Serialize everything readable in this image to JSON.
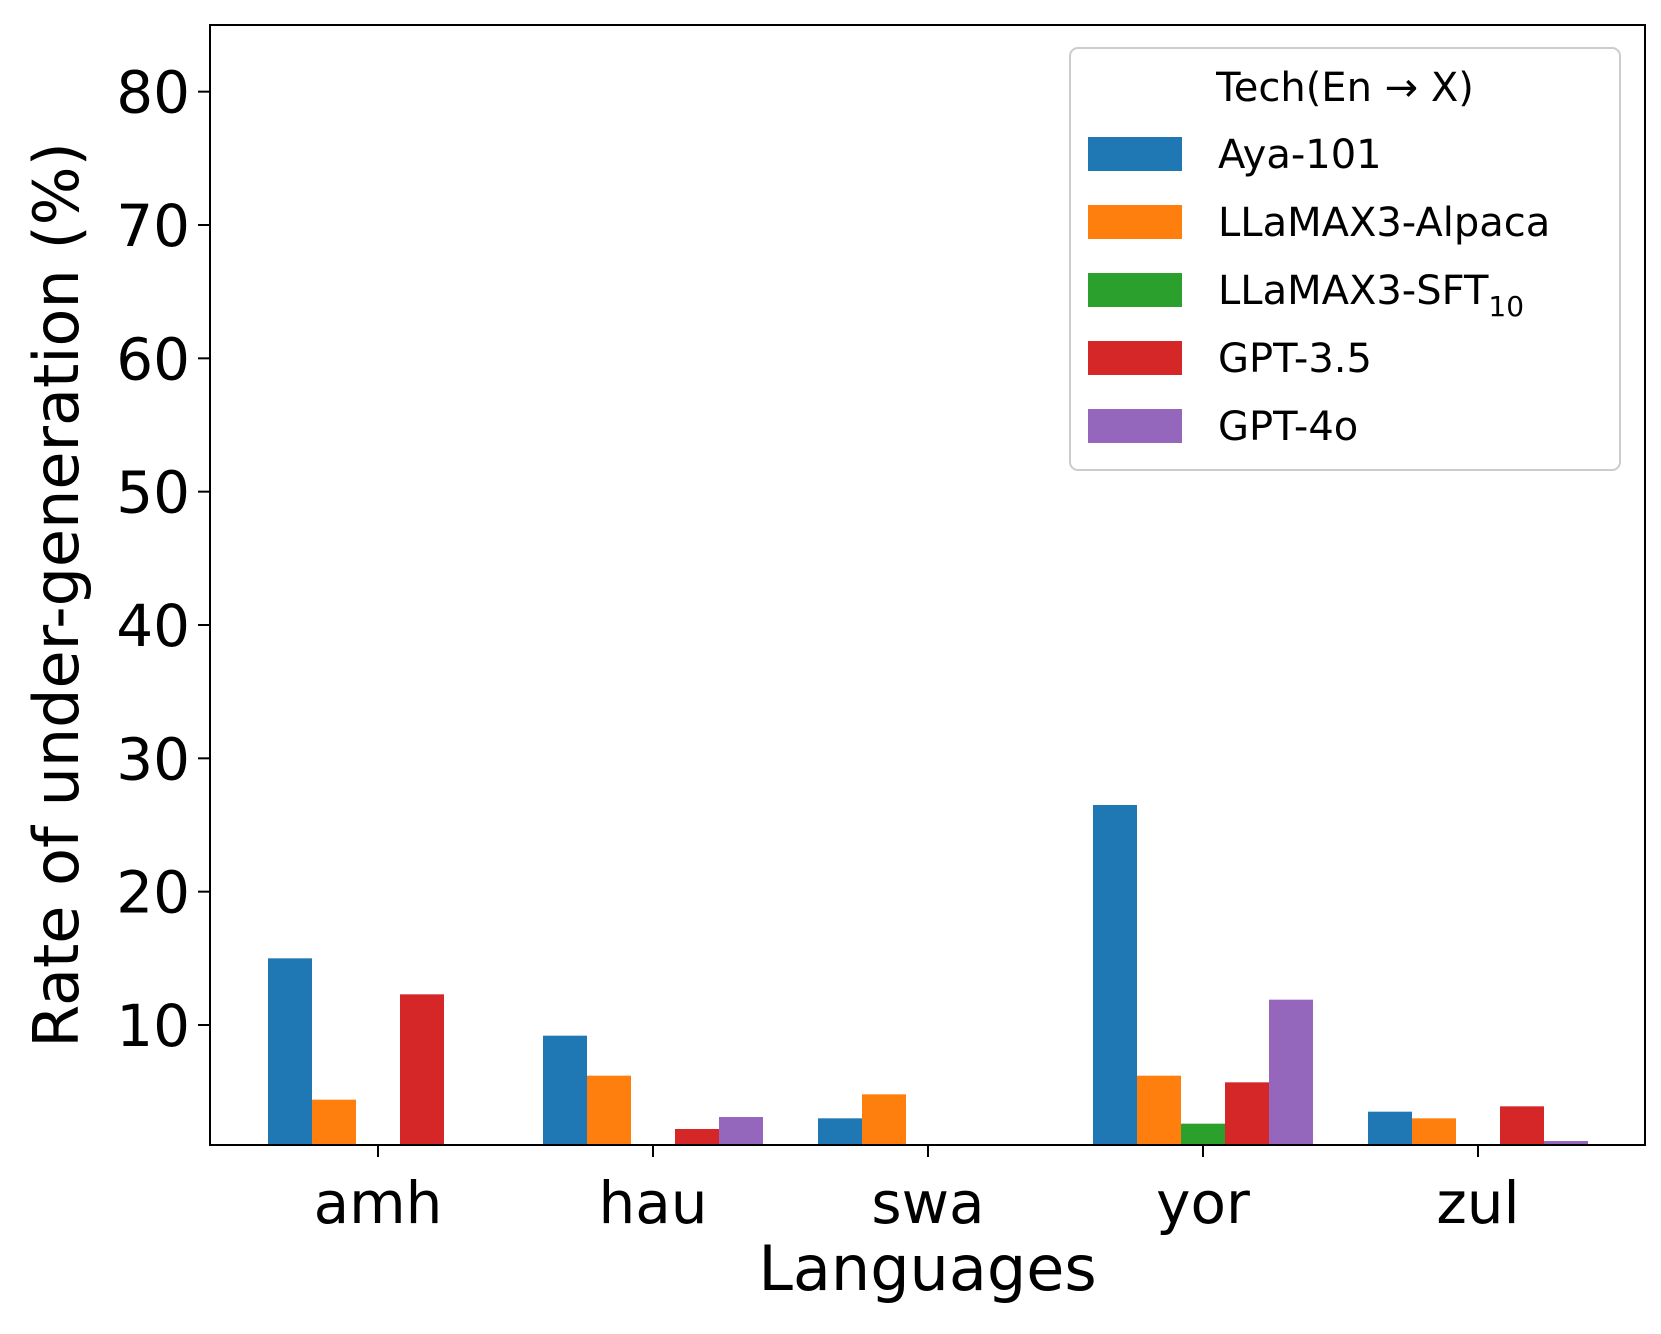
{
  "chart_data": {
    "type": "bar",
    "title": "",
    "xlabel": "Languages",
    "ylabel": "Rate of under-generation (%)",
    "ylim": [
      1,
      85
    ],
    "yticks": [
      10,
      20,
      30,
      40,
      50,
      60,
      70,
      80
    ],
    "categories": [
      "amh",
      "hau",
      "swa",
      "yor",
      "zul"
    ],
    "series": [
      {
        "name": "Aya-101",
        "color": "#1f77b4",
        "values": [
          15.0,
          9.2,
          3.0,
          26.5,
          3.5
        ]
      },
      {
        "name": "LLaMAX3-Alpaca",
        "color": "#ff7f0e",
        "values": [
          4.4,
          6.2,
          4.8,
          6.2,
          3.0
        ]
      },
      {
        "name": "LLaMAX3-SFT",
        "name_subscript": "10",
        "color": "#2ca02c",
        "values": [
          0.0,
          0.0,
          0.0,
          2.6,
          0.0
        ]
      },
      {
        "name": "GPT-3.5",
        "color": "#d62728",
        "values": [
          12.3,
          2.2,
          0.0,
          5.7,
          3.9
        ]
      },
      {
        "name": "GPT-4o",
        "color": "#9467bd",
        "values": [
          0.0,
          3.1,
          0.0,
          11.9,
          1.3
        ]
      }
    ],
    "legend": {
      "title": "Tech(En → X)",
      "placement": "top-right"
    },
    "grid": false
  }
}
